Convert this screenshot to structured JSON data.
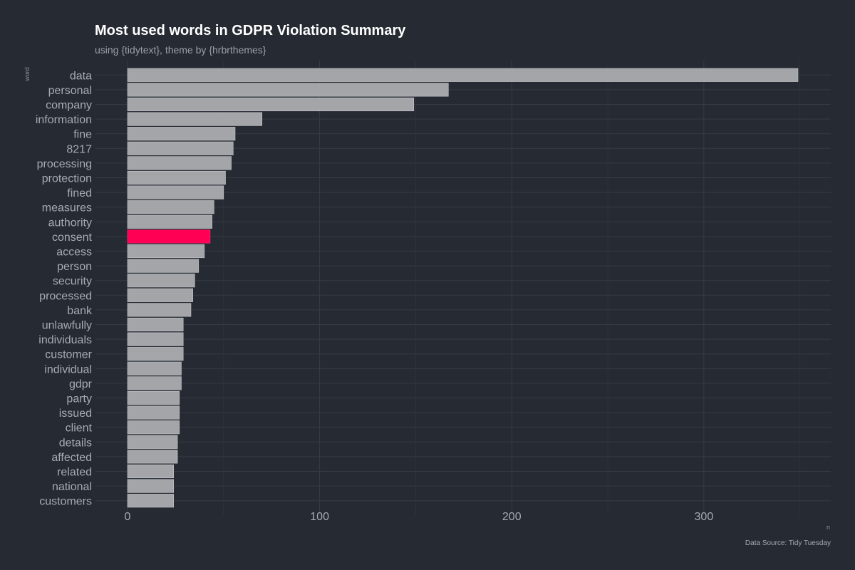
{
  "chart_data": {
    "type": "bar",
    "orientation": "horizontal",
    "title": "Most used words in GDPR Violation Summary",
    "subtitle": "using {tidytext}, theme by {hrbrthemes}",
    "xlabel": "n",
    "ylabel": "word",
    "caption": "Data Source: Tidy Tuesday",
    "xlim": [
      0,
      350
    ],
    "xticks": [
      0,
      100,
      200,
      300
    ],
    "grid": true,
    "bar_color": "#a3a5a9",
    "highlight_color": "#ff0055",
    "highlight_category": "consent",
    "background_color": "#252a33",
    "categories": [
      "data",
      "personal",
      "company",
      "information",
      "fine",
      "8217",
      "processing",
      "protection",
      "fined",
      "measures",
      "authority",
      "consent",
      "access",
      "person",
      "security",
      "processed",
      "bank",
      "unlawfully",
      "individuals",
      "customer",
      "individual",
      "gdpr",
      "party",
      "issued",
      "client",
      "details",
      "affected",
      "related",
      "national",
      "customers"
    ],
    "values": [
      349,
      167,
      149,
      70,
      56,
      55,
      54,
      51,
      50,
      45,
      44,
      43,
      40,
      37,
      35,
      34,
      33,
      29,
      29,
      29,
      28,
      28,
      27,
      27,
      27,
      26,
      26,
      24,
      24,
      24
    ]
  }
}
